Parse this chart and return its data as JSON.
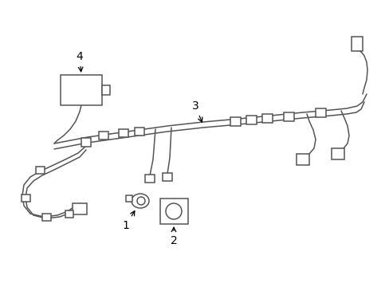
{
  "background_color": "#ffffff",
  "line_color": "#555555",
  "line_width": 1.1,
  "label_color": "#000000",
  "label_fontsize": 10,
  "figsize": [
    4.89,
    3.6
  ],
  "dpi": 100
}
